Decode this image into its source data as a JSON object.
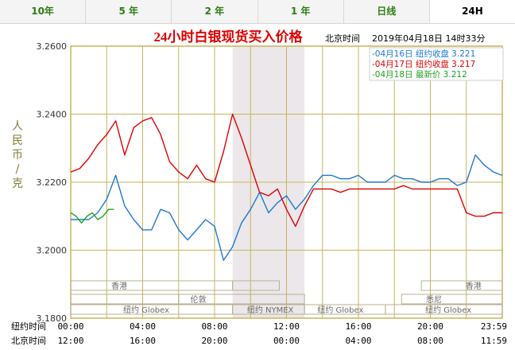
{
  "tabs": [
    {
      "label": "10年",
      "active": false
    },
    {
      "label": "5 年",
      "active": false
    },
    {
      "label": "2 年",
      "active": false
    },
    {
      "label": "1 年",
      "active": false
    },
    {
      "label": "日线",
      "active": false
    },
    {
      "label": "24H",
      "active": true
    }
  ],
  "header": {
    "title": "24小时白银现货买入价格",
    "beijing_label": "北京时间",
    "timestamp": "2019年04月18日 14时33分"
  },
  "sessions": [
    {
      "name": "香港"
    },
    {
      "name": "伦敦"
    },
    {
      "name": "纽约 Globex"
    },
    {
      "name": "纽约 NYMEX"
    },
    {
      "name": "纽约 Globex"
    },
    {
      "name": "香港"
    },
    {
      "name": "悉尼"
    },
    {
      "name": "纽约 Globex"
    }
  ],
  "colors": {
    "frame": "#c8b45a",
    "title": "#dd0000",
    "s16": "#1e78d2",
    "s17": "#e00000",
    "s18": "#22a022",
    "highlight": "#ebe7ea"
  },
  "chart_data": {
    "type": "line",
    "title": "24小时白银现货买入价格",
    "ylabel": "人民币/克",
    "ylim": [
      3.18,
      3.26
    ],
    "yticks": [
      "3.2600",
      "3.2400",
      "3.2200",
      "3.2000",
      "3.1800"
    ],
    "x_row1_label": "纽约时间",
    "x_row2_label": "北京时间",
    "x_ticks_ny": [
      "00:00",
      "04:00",
      "08:00",
      "12:00",
      "16:00",
      "20:00",
      "23:59"
    ],
    "x_ticks_bj": [
      "12:00",
      "16:00",
      "20:00",
      "00:00",
      "04:00",
      "08:00",
      "11:59"
    ],
    "xlim": [
      0,
      24
    ],
    "series": [
      {
        "name": "04月16日",
        "value_label": "纽约收盘",
        "last_value": "3.221",
        "key": "s16",
        "x": [
          0,
          0.5,
          1,
          1.5,
          2,
          2.5,
          3,
          3.5,
          4,
          4.5,
          5,
          5.5,
          6,
          6.5,
          7,
          7.5,
          8,
          8.5,
          9,
          9.5,
          10,
          10.5,
          11,
          11.5,
          12,
          12.5,
          13,
          13.5,
          14,
          14.5,
          15,
          15.5,
          16,
          16.5,
          17,
          17.5,
          18,
          18.5,
          19,
          19.5,
          20,
          20.5,
          21,
          21.5,
          22,
          22.5,
          23,
          23.5,
          23.99
        ],
        "values": [
          3.209,
          3.209,
          3.209,
          3.211,
          3.215,
          3.222,
          3.213,
          3.209,
          3.206,
          3.206,
          3.212,
          3.211,
          3.206,
          3.203,
          3.206,
          3.209,
          3.207,
          3.197,
          3.201,
          3.208,
          3.212,
          3.217,
          3.211,
          3.214,
          3.216,
          3.212,
          3.215,
          3.219,
          3.222,
          3.222,
          3.221,
          3.221,
          3.222,
          3.22,
          3.22,
          3.22,
          3.222,
          3.221,
          3.221,
          3.22,
          3.22,
          3.221,
          3.221,
          3.219,
          3.22,
          3.228,
          3.225,
          3.223,
          3.222
        ]
      },
      {
        "name": "04月17日",
        "value_label": "纽约收盘",
        "last_value": "3.217",
        "key": "s17",
        "x": [
          0,
          0.5,
          1,
          1.5,
          2,
          2.5,
          3,
          3.5,
          4,
          4.5,
          5,
          5.5,
          6,
          6.5,
          7,
          7.5,
          8,
          8.5,
          9,
          9.5,
          10,
          10.5,
          11,
          11.5,
          12,
          12.5,
          13,
          13.5,
          14,
          14.5,
          15,
          15.5,
          16,
          16.5,
          17,
          17.5,
          18,
          18.5,
          19,
          19.5,
          20,
          20.5,
          21,
          21.5,
          22,
          22.5,
          23,
          23.5,
          23.99
        ],
        "values": [
          3.223,
          3.224,
          3.227,
          3.231,
          3.234,
          3.238,
          3.228,
          3.236,
          3.238,
          3.239,
          3.234,
          3.226,
          3.223,
          3.221,
          3.225,
          3.221,
          3.22,
          3.229,
          3.24,
          3.233,
          3.225,
          3.217,
          3.216,
          3.218,
          3.212,
          3.207,
          3.213,
          3.218,
          3.218,
          3.218,
          3.217,
          3.218,
          3.218,
          3.218,
          3.218,
          3.218,
          3.218,
          3.219,
          3.218,
          3.218,
          3.218,
          3.218,
          3.218,
          3.218,
          3.211,
          3.21,
          3.21,
          3.211,
          3.211
        ]
      },
      {
        "name": "04月18日",
        "value_label": "最新价",
        "last_value": "3.212",
        "key": "s18",
        "x": [
          0,
          0.3,
          0.6,
          0.9,
          1.2,
          1.5,
          1.8,
          2.1,
          2.4
        ],
        "values": [
          3.211,
          3.21,
          3.208,
          3.21,
          3.211,
          3.209,
          3.21,
          3.212,
          3.212
        ]
      }
    ],
    "highlight_range": [
      9,
      13
    ]
  }
}
